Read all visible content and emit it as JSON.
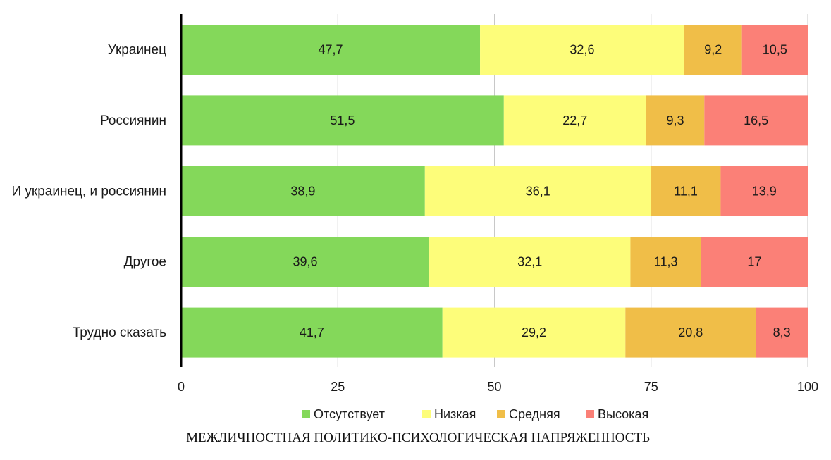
{
  "chart_data": {
    "type": "bar",
    "orientation": "horizontal",
    "stacked": true,
    "title": "",
    "xlabel": "МЕЖЛИЧНОСТНАЯ ПОЛИТИКО-ПСИХОЛОГИЧЕСКАЯ НАПРЯЖЕННОСТЬ",
    "ylabel": "",
    "categories": [
      "Украинец",
      "Россиянин",
      "И украинец, и россиянин",
      "Другое",
      "Трудно сказать"
    ],
    "xlim": [
      0,
      100
    ],
    "xticks": [
      0,
      25,
      50,
      75,
      100
    ],
    "xtick_labels": [
      "0",
      "25",
      "50",
      "75",
      "100"
    ],
    "grid": true,
    "legend_position": "bottom",
    "series": [
      {
        "name": "Отсутствует",
        "color": "#84d85a",
        "values": [
          47.7,
          51.5,
          38.9,
          39.6,
          41.7
        ],
        "labels": [
          "47,7",
          "51,5",
          "38,9",
          "39,6",
          "41,7"
        ]
      },
      {
        "name": "Низкая",
        "color": "#fdfd7a",
        "values": [
          32.6,
          22.7,
          36.1,
          32.1,
          29.2
        ],
        "labels": [
          "32,6",
          "22,7",
          "36,1",
          "32,1",
          "29,2"
        ]
      },
      {
        "name": "Средняя",
        "color": "#f0be48",
        "values": [
          9.2,
          9.3,
          11.1,
          11.3,
          20.8
        ],
        "labels": [
          "9,2",
          "9,3",
          "11,1",
          "11,3",
          "20,8"
        ]
      },
      {
        "name": "Высокая",
        "color": "#fb8077",
        "values": [
          10.5,
          16.5,
          13.9,
          17,
          8.3
        ],
        "labels": [
          "10,5",
          "16,5",
          "13,9",
          "17",
          "8,3"
        ]
      }
    ]
  }
}
